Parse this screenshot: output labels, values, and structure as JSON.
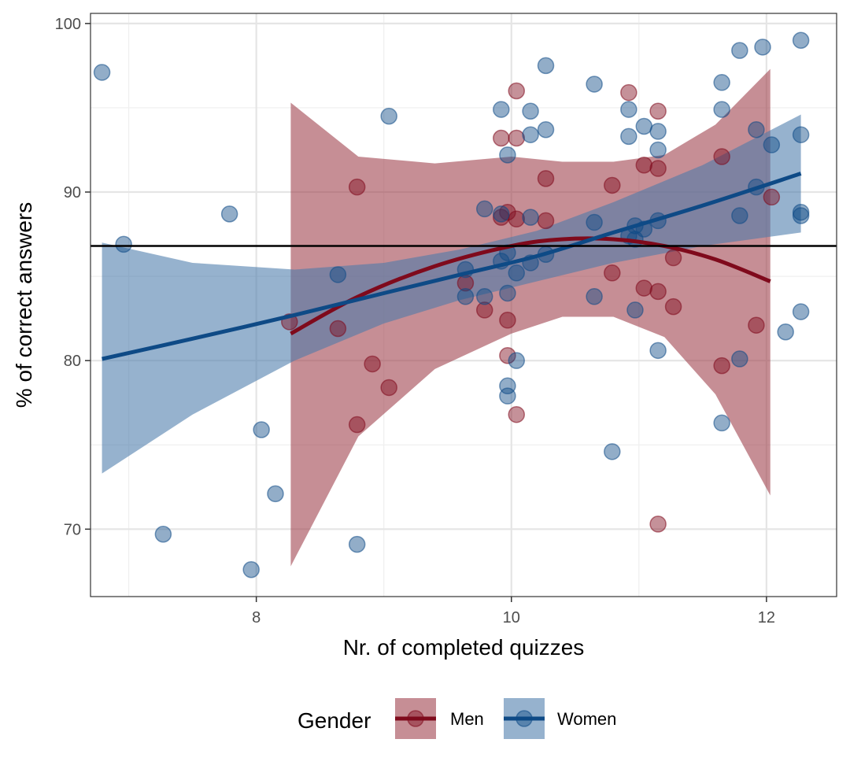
{
  "chart_data": {
    "type": "scatter",
    "xlabel": "Nr. of completed quizzes",
    "ylabel": "% of correct answers",
    "xlim": [
      6.7,
      12.55
    ],
    "ylim": [
      66.0,
      100.6
    ],
    "x_ticks": [
      8,
      10,
      12
    ],
    "y_ticks": [
      70,
      80,
      90,
      100
    ],
    "x_tick_labels": [
      "8",
      "10",
      "12"
    ],
    "y_tick_labels": [
      "70",
      "80",
      "90",
      "100"
    ],
    "grid": true,
    "reference_line": {
      "y": 86.8,
      "color": "#000000"
    },
    "legend": {
      "title": "Gender",
      "position": "bottom"
    },
    "series": [
      {
        "name": "Men",
        "color": "#7f0a1c",
        "points": [
          [
            8.26,
            82.3
          ],
          [
            8.64,
            81.9
          ],
          [
            8.79,
            90.3
          ],
          [
            8.79,
            76.2
          ],
          [
            8.91,
            79.8
          ],
          [
            9.04,
            78.4
          ],
          [
            9.64,
            84.6
          ],
          [
            9.79,
            83.0
          ],
          [
            9.92,
            93.2
          ],
          [
            9.92,
            88.5
          ],
          [
            9.97,
            88.8
          ],
          [
            9.97,
            80.3
          ],
          [
            9.97,
            82.4
          ],
          [
            10.04,
            96.0
          ],
          [
            10.04,
            93.2
          ],
          [
            10.04,
            76.8
          ],
          [
            10.04,
            88.4
          ],
          [
            10.27,
            90.8
          ],
          [
            10.27,
            88.3
          ],
          [
            10.79,
            90.4
          ],
          [
            10.79,
            85.2
          ],
          [
            10.92,
            95.9
          ],
          [
            11.04,
            91.6
          ],
          [
            11.04,
            84.3
          ],
          [
            11.15,
            94.8
          ],
          [
            11.15,
            91.4
          ],
          [
            11.15,
            84.1
          ],
          [
            11.15,
            70.3
          ],
          [
            11.27,
            86.1
          ],
          [
            11.27,
            83.2
          ],
          [
            11.65,
            92.1
          ],
          [
            11.65,
            79.7
          ],
          [
            11.92,
            82.1
          ],
          [
            12.04,
            89.7
          ]
        ],
        "fit": {
          "x": [
            8.27,
            8.8,
            9.4,
            10.0,
            10.4,
            10.8,
            11.2,
            11.6,
            12.03
          ],
          "y": [
            81.6,
            83.8,
            85.6,
            86.8,
            87.2,
            87.2,
            86.8,
            86.0,
            84.7
          ],
          "ci_lower": [
            67.8,
            75.5,
            79.5,
            81.6,
            82.6,
            82.6,
            81.4,
            78.0,
            72.0
          ],
          "ci_upper": [
            95.3,
            92.1,
            91.7,
            92.1,
            91.8,
            91.8,
            92.2,
            94.0,
            97.3
          ]
        }
      },
      {
        "name": "Women",
        "color": "#0e4a86",
        "points": [
          [
            6.79,
            97.1
          ],
          [
            6.96,
            86.9
          ],
          [
            7.27,
            69.7
          ],
          [
            7.79,
            88.7
          ],
          [
            7.96,
            67.6
          ],
          [
            8.04,
            75.9
          ],
          [
            8.15,
            72.1
          ],
          [
            8.64,
            85.1
          ],
          [
            8.79,
            69.1
          ],
          [
            9.04,
            94.5
          ],
          [
            9.64,
            85.4
          ],
          [
            9.64,
            83.8
          ],
          [
            9.79,
            89.0
          ],
          [
            9.79,
            83.8
          ],
          [
            9.92,
            94.9
          ],
          [
            9.92,
            88.7
          ],
          [
            9.92,
            85.9
          ],
          [
            9.97,
            92.2
          ],
          [
            9.97,
            86.4
          ],
          [
            9.97,
            84.0
          ],
          [
            9.97,
            78.5
          ],
          [
            9.97,
            77.9
          ],
          [
            10.04,
            85.2
          ],
          [
            10.04,
            80.0
          ],
          [
            10.15,
            94.8
          ],
          [
            10.15,
            93.4
          ],
          [
            10.15,
            88.5
          ],
          [
            10.15,
            85.8
          ],
          [
            10.27,
            97.5
          ],
          [
            10.27,
            93.7
          ],
          [
            10.27,
            86.3
          ],
          [
            10.65,
            96.4
          ],
          [
            10.65,
            88.2
          ],
          [
            10.65,
            83.8
          ],
          [
            10.79,
            74.6
          ],
          [
            10.92,
            94.9
          ],
          [
            10.92,
            93.3
          ],
          [
            10.92,
            87.4
          ],
          [
            10.97,
            88.0
          ],
          [
            10.97,
            87.2
          ],
          [
            10.97,
            83.0
          ],
          [
            11.04,
            93.9
          ],
          [
            11.04,
            87.8
          ],
          [
            11.15,
            93.6
          ],
          [
            11.15,
            92.5
          ],
          [
            11.15,
            88.3
          ],
          [
            11.15,
            80.6
          ],
          [
            11.65,
            96.5
          ],
          [
            11.65,
            94.9
          ],
          [
            11.65,
            76.3
          ],
          [
            11.79,
            98.4
          ],
          [
            11.79,
            88.6
          ],
          [
            11.79,
            80.1
          ],
          [
            11.92,
            93.7
          ],
          [
            11.92,
            90.3
          ],
          [
            11.97,
            98.6
          ],
          [
            12.04,
            92.8
          ],
          [
            12.15,
            81.7
          ],
          [
            12.27,
            99.0
          ],
          [
            12.27,
            93.4
          ],
          [
            12.27,
            88.8
          ],
          [
            12.27,
            88.6
          ],
          [
            12.27,
            82.9
          ]
        ],
        "fit": {
          "x": [
            6.79,
            7.5,
            8.3,
            9.0,
            9.6,
            10.2,
            10.8,
            11.5,
            12.27
          ],
          "y": [
            80.1,
            81.3,
            82.7,
            84.0,
            85.1,
            86.2,
            87.6,
            89.2,
            91.1
          ],
          "ci_lower": [
            73.3,
            76.8,
            80.0,
            82.2,
            83.6,
            84.7,
            85.8,
            86.8,
            87.6
          ],
          "ci_upper": [
            87.0,
            85.8,
            85.4,
            85.8,
            86.6,
            87.7,
            89.4,
            91.6,
            94.6
          ]
        }
      }
    ]
  }
}
